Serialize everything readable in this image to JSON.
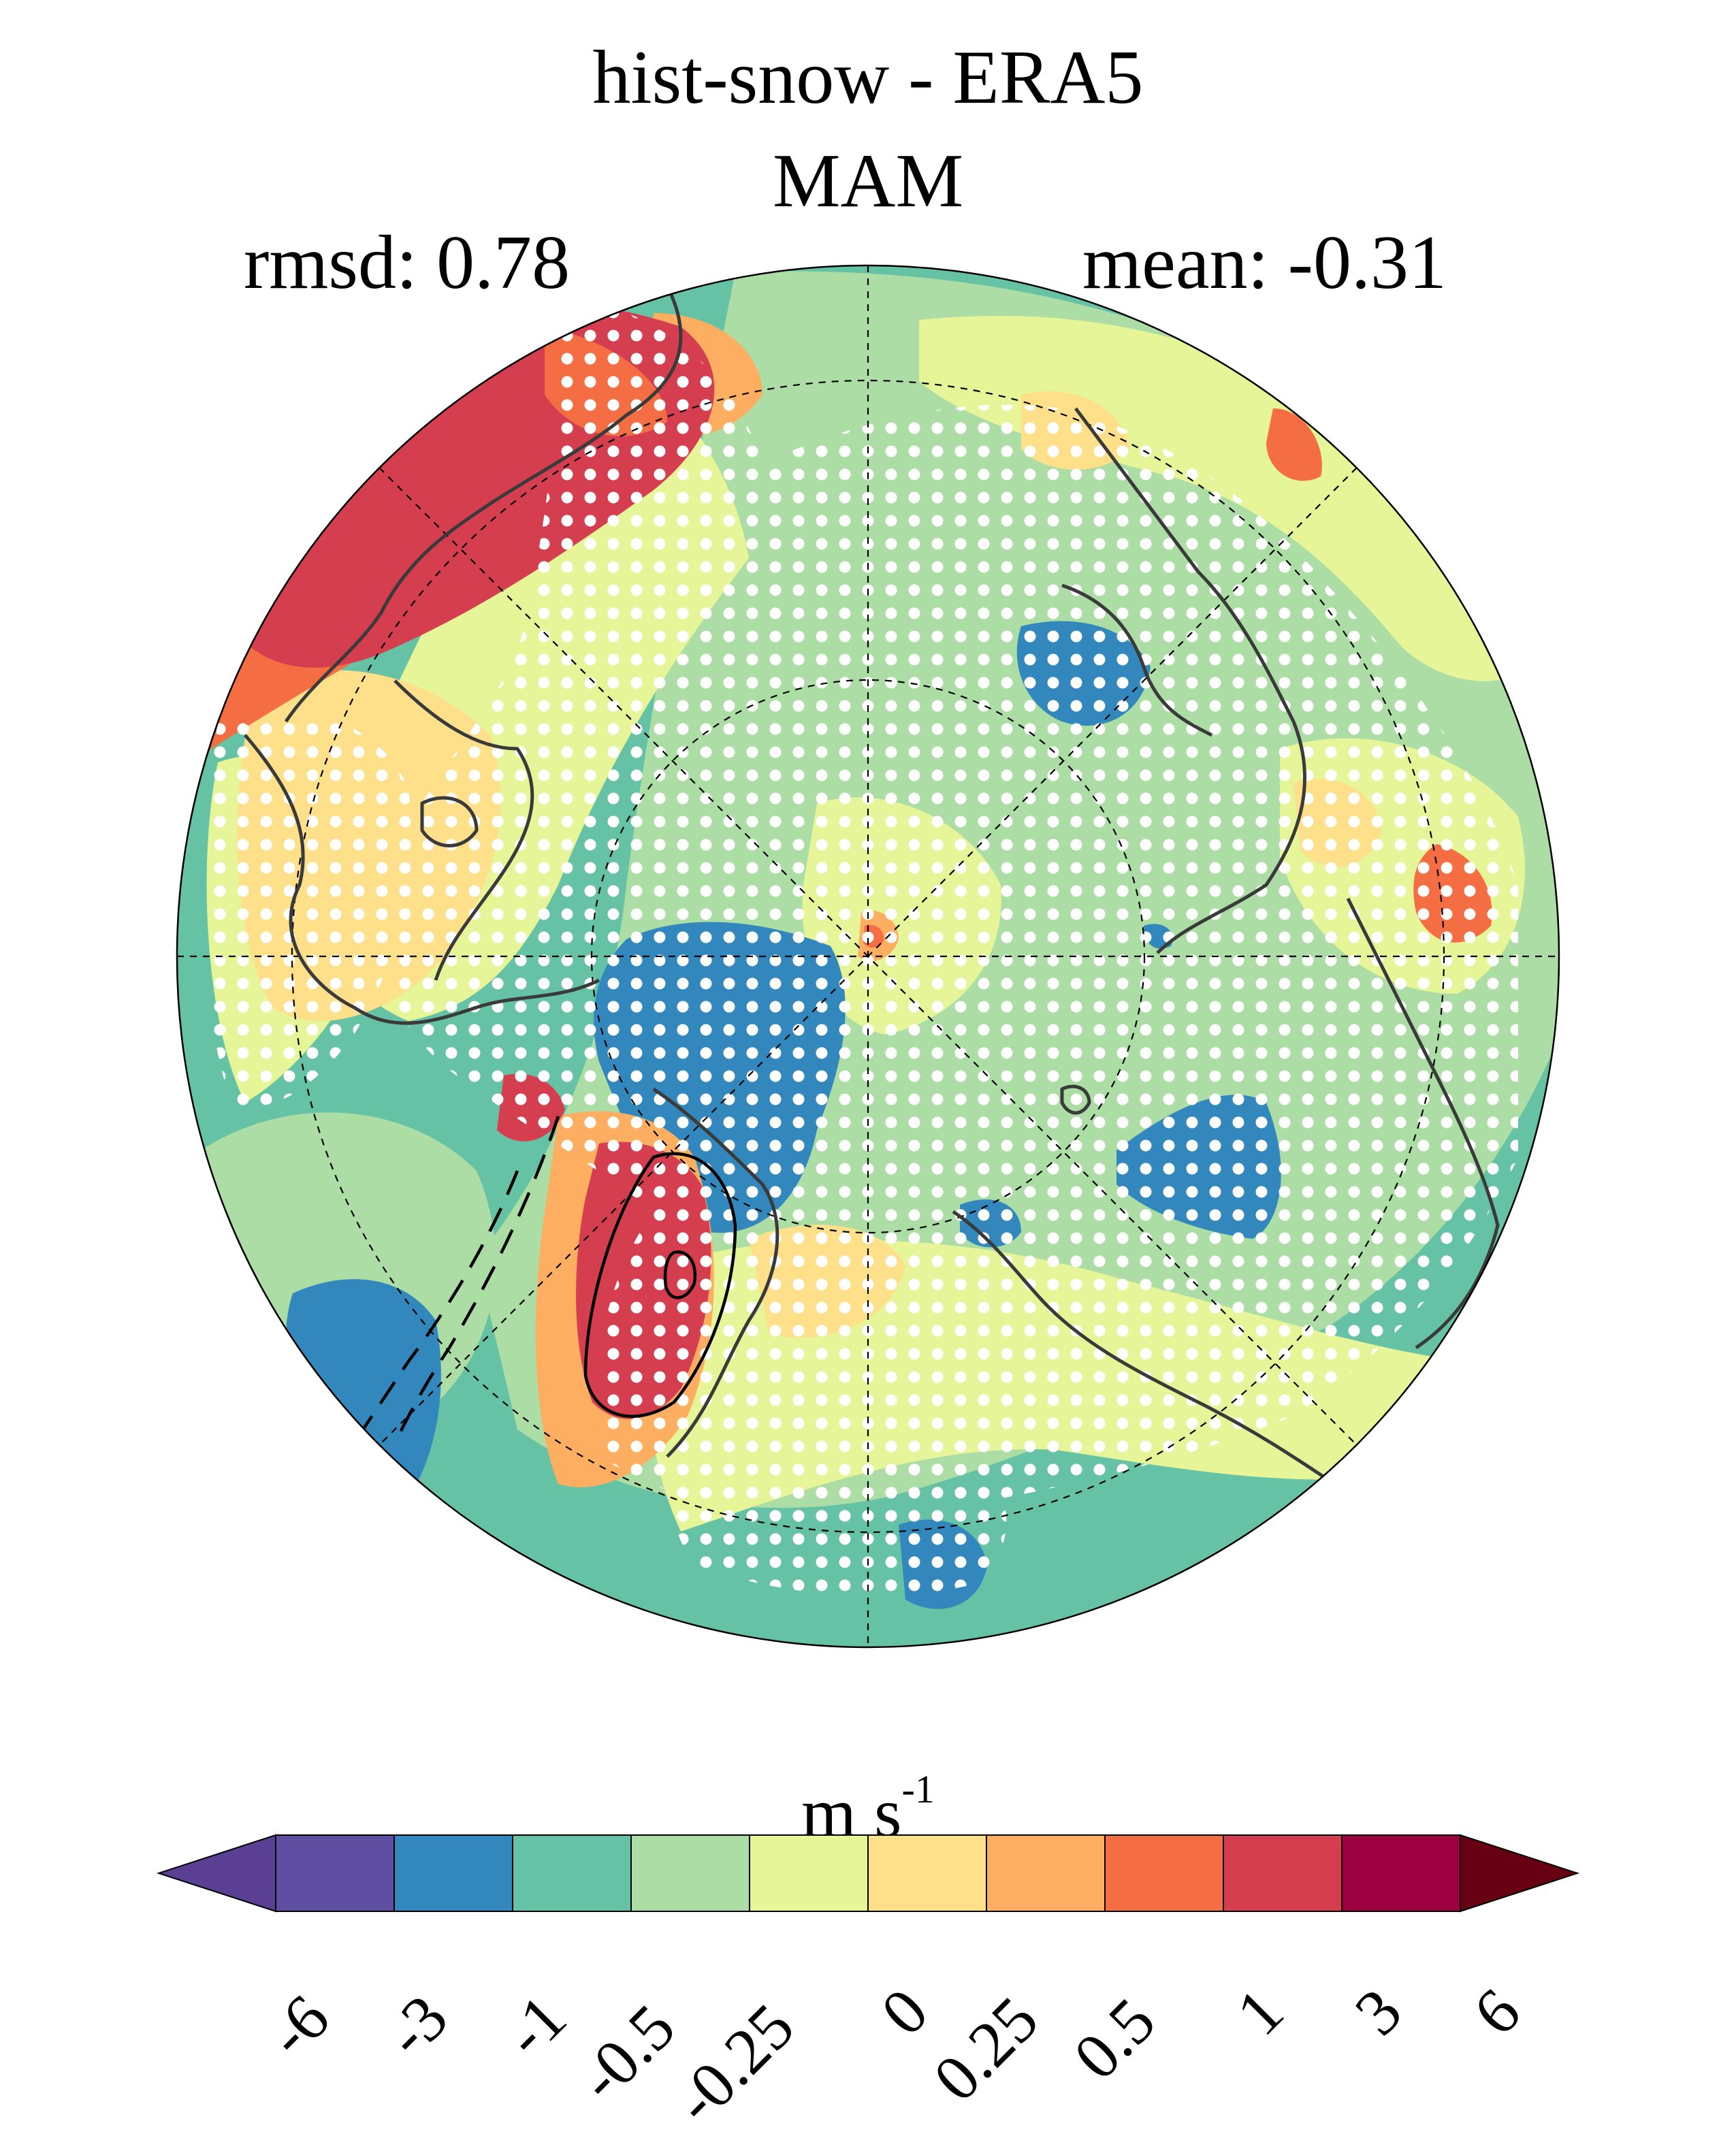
{
  "header": {
    "title": "hist-snow - ERA5",
    "season": "MAM",
    "rmsd_label": "rmsd: 0.78",
    "mean_label": "mean: -0.31"
  },
  "map": {
    "projection": "north-polar-stereographic",
    "hatching": "white dots mark stippled (significant) regions",
    "contours": "black solid and dashed isolines over Eurasia"
  },
  "colorbar": {
    "units_base": "m s",
    "units_exp": "-1",
    "levels": [
      "-6",
      "-3",
      "-1",
      "-0.5",
      "-0.25",
      "0",
      "0.25",
      "0.5",
      "1",
      "3",
      "6"
    ],
    "colors": [
      "#5e4fa2",
      "#3288bd",
      "#66c2a5",
      "#abdda4",
      "#e6f598",
      "#fee08b",
      "#fdae61",
      "#f46d43",
      "#d53e4f",
      "#9e0142"
    ],
    "under_color": "#5b3f95",
    "over_color": "#670012"
  }
}
